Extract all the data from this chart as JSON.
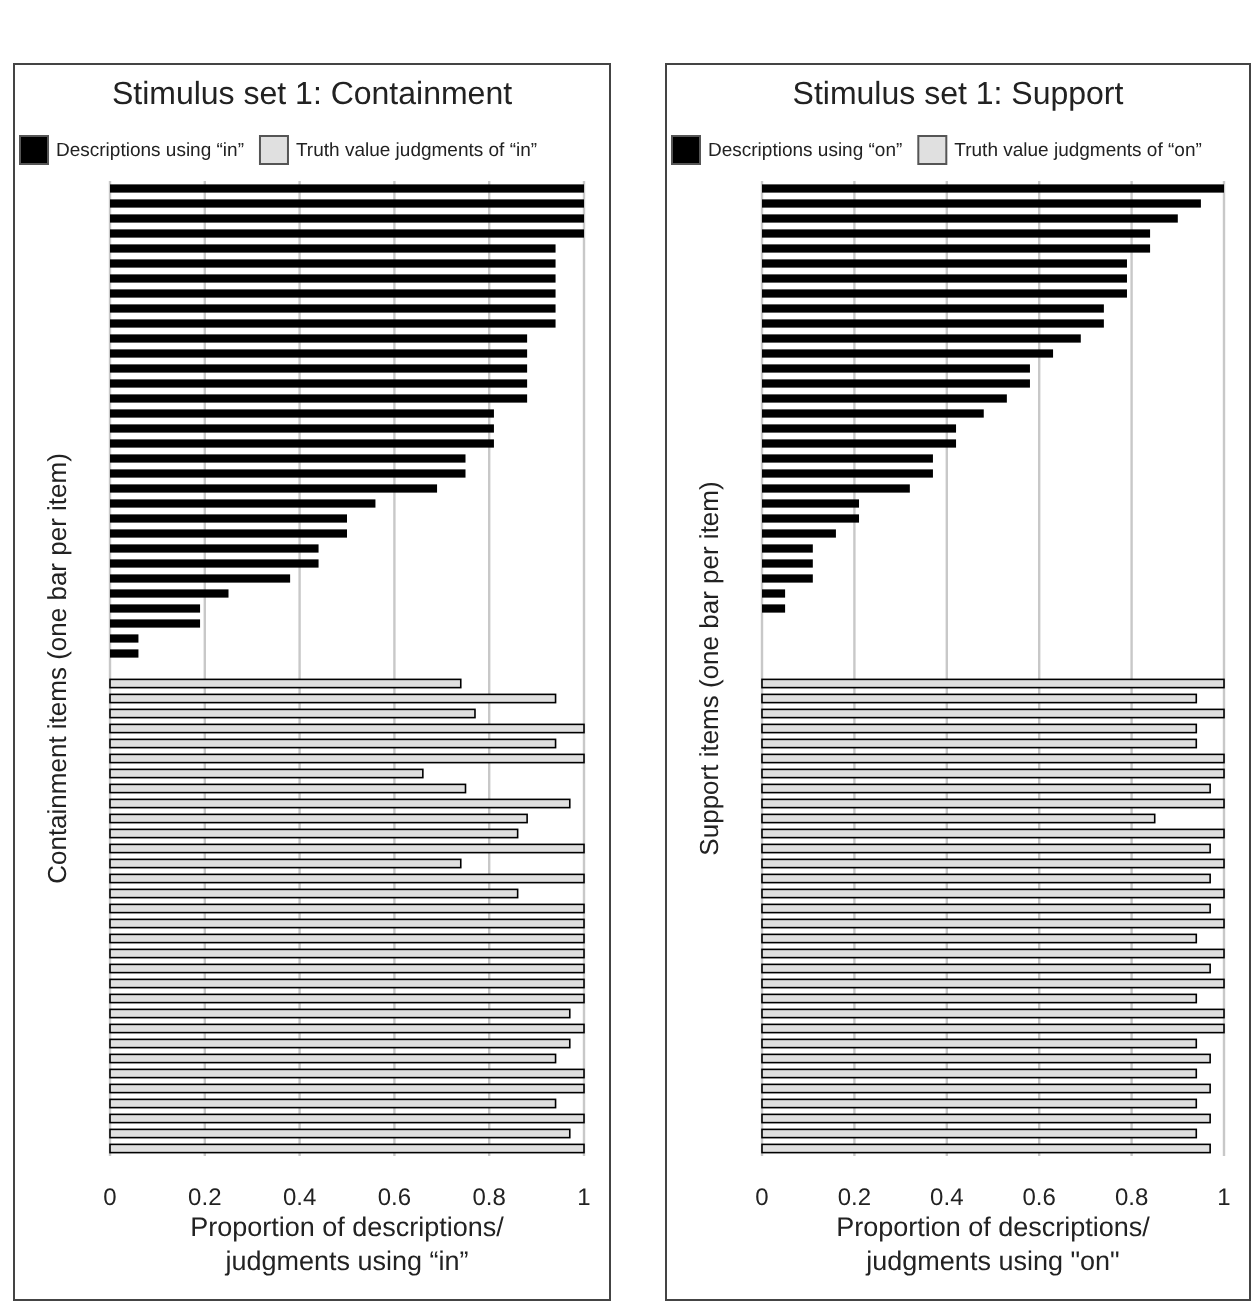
{
  "chart_data": [
    {
      "type": "bar",
      "orientation": "horizontal",
      "title": "Stimulus set 1: Containment",
      "ylabel": "Containment items (one bar per item)",
      "xlabel": "Proportion of descriptions/\njudgments using “in”",
      "xlim": [
        0,
        1
      ],
      "xticks": [
        0,
        0.2,
        0.4,
        0.6,
        0.8,
        1
      ],
      "grid": "x",
      "legend": "top",
      "tick_labels": "x",
      "categories": [
        null,
        null,
        null,
        null,
        null,
        null,
        null,
        null,
        null,
        null,
        null,
        null,
        null,
        null,
        null,
        null,
        null,
        null,
        null,
        null,
        null,
        null,
        null,
        null,
        null,
        null,
        null,
        null,
        null,
        null,
        null,
        null,
        null,
        null,
        null,
        null,
        null,
        null,
        null,
        null,
        null,
        null,
        null,
        null,
        null,
        null,
        null,
        null,
        null,
        null,
        null,
        null,
        null,
        null,
        null,
        null,
        null,
        null,
        null,
        null,
        null,
        null,
        null,
        null,
        null
      ],
      "series": [
        {
          "name": "Descriptions using “in”",
          "color": "#000000",
          "values": [
            1,
            1,
            1,
            1,
            0.94,
            0.94,
            0.94,
            0.94,
            0.94,
            0.94,
            0.88,
            0.88,
            0.88,
            0.88,
            0.88,
            0.81,
            0.81,
            0.81,
            0.75,
            0.75,
            0.69,
            0.56,
            0.5,
            0.5,
            0.44,
            0.44,
            0.38,
            0.25,
            0.19,
            0.19,
            0.06,
            0.06,
            null,
            null,
            null,
            null,
            null,
            null,
            null,
            null,
            null,
            null,
            null,
            null,
            null,
            null,
            null,
            null,
            null,
            null,
            null,
            null,
            null,
            null,
            null,
            null,
            null,
            null,
            null,
            null,
            null,
            null,
            null,
            null,
            null
          ]
        },
        {
          "name": "Truth value judgments of “in”",
          "color": "#e0e0e0",
          "values": [
            null,
            null,
            null,
            null,
            null,
            null,
            null,
            null,
            null,
            null,
            null,
            null,
            null,
            null,
            null,
            null,
            null,
            null,
            null,
            null,
            null,
            null,
            null,
            null,
            null,
            null,
            null,
            null,
            null,
            null,
            null,
            null,
            null,
            0.74,
            0.94,
            0.77,
            1,
            0.94,
            1,
            0.66,
            0.75,
            0.97,
            0.88,
            0.86,
            1,
            0.74,
            1,
            0.86,
            1,
            1,
            1,
            1,
            1,
            1,
            1,
            0.97,
            1,
            0.97,
            0.94,
            1,
            1,
            0.94,
            1,
            0.97,
            1
          ]
        }
      ]
    },
    {
      "type": "bar",
      "orientation": "horizontal",
      "title": "Stimulus set 1: Support",
      "ylabel": "Support items (one bar per item)",
      "xlabel": "Proportion of descriptions/\njudgments using \"on\"",
      "xlim": [
        0,
        1
      ],
      "xticks": [
        0,
        0.2,
        0.4,
        0.6,
        0.8,
        1
      ],
      "grid": "x",
      "legend": "top",
      "tick_labels": "x",
      "categories": [
        null,
        null,
        null,
        null,
        null,
        null,
        null,
        null,
        null,
        null,
        null,
        null,
        null,
        null,
        null,
        null,
        null,
        null,
        null,
        null,
        null,
        null,
        null,
        null,
        null,
        null,
        null,
        null,
        null,
        null,
        null,
        null,
        null,
        null,
        null,
        null,
        null,
        null,
        null,
        null,
        null,
        null,
        null,
        null,
        null,
        null,
        null,
        null,
        null,
        null,
        null,
        null,
        null,
        null,
        null,
        null,
        null,
        null,
        null,
        null,
        null,
        null,
        null,
        null,
        null
      ],
      "series": [
        {
          "name": "Descriptions using “on”",
          "color": "#000000",
          "values": [
            1,
            0.95,
            0.9,
            0.84,
            0.84,
            0.79,
            0.79,
            0.79,
            0.74,
            0.74,
            0.69,
            0.63,
            0.58,
            0.58,
            0.53,
            0.48,
            0.42,
            0.42,
            0.37,
            0.37,
            0.32,
            0.21,
            0.21,
            0.16,
            0.11,
            0.11,
            0.11,
            0.05,
            0.05,
            null,
            null,
            null,
            null,
            null,
            null,
            null,
            null,
            null,
            null,
            null,
            null,
            null,
            null,
            null,
            null,
            null,
            null,
            null,
            null,
            null,
            null,
            null,
            null,
            null,
            null,
            null,
            null,
            null,
            null,
            null,
            null,
            null,
            null,
            null,
            null
          ]
        },
        {
          "name": "Truth value judgments of “on”",
          "color": "#e0e0e0",
          "values": [
            null,
            null,
            null,
            null,
            null,
            null,
            null,
            null,
            null,
            null,
            null,
            null,
            null,
            null,
            null,
            null,
            null,
            null,
            null,
            null,
            null,
            null,
            null,
            null,
            null,
            null,
            null,
            null,
            null,
            null,
            null,
            null,
            null,
            1,
            0.94,
            1,
            0.94,
            0.94,
            1,
            1,
            0.97,
            1,
            0.85,
            1,
            0.97,
            1,
            0.97,
            1,
            0.97,
            1,
            0.94,
            1,
            0.97,
            1,
            0.94,
            1,
            1,
            0.94,
            0.97,
            0.94,
            0.97,
            0.94,
            0.97,
            0.94,
            0.97
          ]
        }
      ]
    }
  ]
}
